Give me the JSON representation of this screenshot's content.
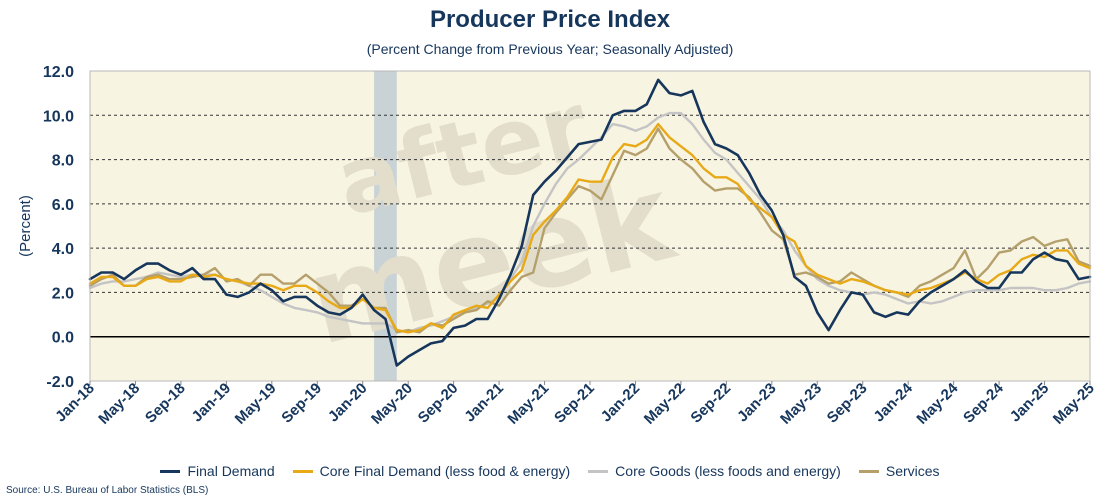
{
  "chart_data": {
    "type": "line",
    "title": "Producer Price Index",
    "subtitle": "(Percent Change from Previous Year; Seasonally Adjusted)",
    "ylabel": "(Percent)",
    "xlabel": "",
    "ylim": [
      -2.0,
      12.0
    ],
    "yticks": [
      "-2.0",
      "0.0",
      "2.0",
      "4.0",
      "6.0",
      "8.0",
      "10.0",
      "12.0"
    ],
    "ytick_values": [
      -2,
      0,
      2,
      4,
      6,
      8,
      10,
      12
    ],
    "grid": "horizontal dashed",
    "legend_position": "bottom",
    "recession_shading": {
      "start": "2020-02",
      "end": "2020-04",
      "color": "#c9d3d6"
    },
    "x": [
      "2018-01",
      "2018-02",
      "2018-03",
      "2018-04",
      "2018-05",
      "2018-06",
      "2018-07",
      "2018-08",
      "2018-09",
      "2018-10",
      "2018-11",
      "2018-12",
      "2019-01",
      "2019-02",
      "2019-03",
      "2019-04",
      "2019-05",
      "2019-06",
      "2019-07",
      "2019-08",
      "2019-09",
      "2019-10",
      "2019-11",
      "2019-12",
      "2020-01",
      "2020-02",
      "2020-03",
      "2020-04",
      "2020-05",
      "2020-06",
      "2020-07",
      "2020-08",
      "2020-09",
      "2020-10",
      "2020-11",
      "2020-12",
      "2021-01",
      "2021-02",
      "2021-03",
      "2021-04",
      "2021-05",
      "2021-06",
      "2021-07",
      "2021-08",
      "2021-09",
      "2021-10",
      "2021-11",
      "2021-12",
      "2022-01",
      "2022-02",
      "2022-03",
      "2022-04",
      "2022-05",
      "2022-06",
      "2022-07",
      "2022-08",
      "2022-09",
      "2022-10",
      "2022-11",
      "2022-12",
      "2023-01",
      "2023-02",
      "2023-03",
      "2023-04",
      "2023-05",
      "2023-06",
      "2023-07",
      "2023-08",
      "2023-09",
      "2023-10",
      "2023-11",
      "2023-12",
      "2024-01",
      "2024-02",
      "2024-03",
      "2024-04",
      "2024-05",
      "2024-06",
      "2024-07",
      "2024-08",
      "2024-09",
      "2024-10",
      "2024-11",
      "2024-12",
      "2025-01",
      "2025-02",
      "2025-03",
      "2025-04",
      "2025-05"
    ],
    "x_tick_labels": [
      "Jan-18",
      "May-18",
      "Sep-18",
      "Jan-19",
      "May-19",
      "Sep-19",
      "Jan-20",
      "May-20",
      "Sep-20",
      "Jan-21",
      "May-21",
      "Sep-21",
      "Jan-22",
      "May-22",
      "Sep-22",
      "Jan-23",
      "May-23",
      "Sep-23",
      "Jan-24",
      "May-24",
      "Sep-24",
      "Jan-25",
      "May-25"
    ],
    "series": [
      {
        "name": "Final Demand",
        "color": "#16365c",
        "width": 2.6,
        "values": [
          2.6,
          2.9,
          2.9,
          2.6,
          3.0,
          3.3,
          3.3,
          3.0,
          2.8,
          3.1,
          2.6,
          2.6,
          1.9,
          1.8,
          2.0,
          2.4,
          2.1,
          1.6,
          1.8,
          1.8,
          1.4,
          1.1,
          1.0,
          1.3,
          1.9,
          1.2,
          0.8,
          -1.3,
          -0.9,
          -0.6,
          -0.3,
          -0.2,
          0.4,
          0.5,
          0.8,
          0.8,
          1.7,
          2.8,
          4.1,
          6.4,
          7.0,
          7.5,
          8.1,
          8.7,
          8.8,
          8.9,
          10.0,
          10.2,
          10.2,
          10.5,
          11.6,
          11.0,
          10.9,
          11.1,
          9.7,
          8.7,
          8.5,
          8.2,
          7.4,
          6.4,
          5.7,
          4.6,
          2.7,
          2.3,
          1.1,
          0.3,
          1.2,
          2.0,
          1.9,
          1.1,
          0.9,
          1.1,
          1.0,
          1.6,
          2.0,
          2.3,
          2.6,
          3.0,
          2.5,
          2.2,
          2.2,
          2.9,
          2.9,
          3.5,
          3.8,
          3.5,
          3.4,
          2.6,
          2.7
        ]
      },
      {
        "name": "Core Final Demand (less food & energy)",
        "color": "#e8a917",
        "width": 2.4,
        "values": [
          2.4,
          2.7,
          2.7,
          2.3,
          2.3,
          2.6,
          2.7,
          2.5,
          2.5,
          2.8,
          2.7,
          2.8,
          2.6,
          2.5,
          2.4,
          2.4,
          2.3,
          2.1,
          2.3,
          2.3,
          2.0,
          1.6,
          1.3,
          1.3,
          1.7,
          1.3,
          1.2,
          0.3,
          0.2,
          0.3,
          0.6,
          0.4,
          1.0,
          1.2,
          1.4,
          1.3,
          1.9,
          2.5,
          3.0,
          4.6,
          5.2,
          5.7,
          6.3,
          7.1,
          7.0,
          7.0,
          8.1,
          8.7,
          8.6,
          8.9,
          9.6,
          9.0,
          8.6,
          8.2,
          7.6,
          7.2,
          7.2,
          6.9,
          6.2,
          5.8,
          5.4,
          4.6,
          4.3,
          3.2,
          2.8,
          2.6,
          2.4,
          2.6,
          2.5,
          2.3,
          2.1,
          2.0,
          1.9,
          2.1,
          2.2,
          2.4,
          2.6,
          2.9,
          2.6,
          2.4,
          2.8,
          3.0,
          3.5,
          3.7,
          3.6,
          3.9,
          3.9,
          3.3,
          3.1
        ]
      },
      {
        "name": "Core Goods (less foods and energy)",
        "color": "#c4c4c4",
        "width": 2.4,
        "values": [
          2.2,
          2.4,
          2.5,
          2.5,
          2.6,
          2.7,
          2.9,
          2.8,
          2.7,
          2.8,
          2.8,
          2.8,
          2.6,
          2.5,
          2.3,
          2.1,
          1.8,
          1.5,
          1.3,
          1.2,
          1.1,
          0.9,
          0.8,
          0.7,
          0.6,
          0.6,
          0.6,
          0.3,
          0.2,
          0.4,
          0.5,
          0.7,
          0.9,
          1.1,
          1.3,
          1.5,
          1.8,
          2.6,
          3.4,
          5.0,
          6.0,
          6.9,
          7.6,
          8.0,
          8.5,
          9.0,
          9.6,
          9.5,
          9.3,
          9.5,
          9.9,
          10.1,
          10.1,
          9.6,
          8.9,
          8.3,
          8.0,
          7.4,
          6.8,
          6.2,
          5.4,
          4.8,
          3.9,
          3.2,
          2.6,
          2.3,
          2.1,
          2.0,
          1.9,
          2.0,
          1.9,
          1.7,
          1.5,
          1.6,
          1.5,
          1.6,
          1.8,
          2.0,
          2.1,
          2.1,
          2.1,
          2.2,
          2.2,
          2.2,
          2.1,
          2.1,
          2.2,
          2.4,
          2.5
        ]
      },
      {
        "name": "Services",
        "color": "#b5a06b",
        "width": 2.4,
        "values": [
          2.3,
          2.6,
          2.8,
          2.3,
          2.3,
          2.7,
          2.8,
          2.6,
          2.6,
          2.7,
          2.8,
          3.1,
          2.5,
          2.6,
          2.3,
          2.8,
          2.8,
          2.4,
          2.4,
          2.8,
          2.4,
          2.0,
          1.4,
          1.4,
          1.7,
          1.3,
          1.3,
          0.2,
          0.3,
          0.2,
          0.6,
          0.5,
          0.8,
          1.1,
          1.2,
          1.6,
          1.4,
          2.1,
          2.7,
          2.9,
          4.9,
          5.6,
          6.2,
          6.8,
          6.6,
          6.2,
          7.3,
          8.4,
          8.2,
          8.5,
          9.4,
          8.5,
          8.0,
          7.6,
          7.0,
          6.6,
          6.7,
          6.7,
          6.3,
          5.6,
          4.8,
          4.4,
          2.8,
          2.9,
          2.7,
          2.4,
          2.5,
          2.9,
          2.6,
          2.3,
          2.1,
          2.0,
          1.8,
          2.3,
          2.5,
          2.8,
          3.1,
          3.9,
          2.6,
          3.1,
          3.8,
          3.9,
          4.3,
          4.5,
          4.1,
          4.3,
          4.4,
          3.4,
          3.2
        ]
      }
    ]
  },
  "watermark": "after meek",
  "source": "Source: U.S. Bureau of Labor Statistics (BLS)"
}
